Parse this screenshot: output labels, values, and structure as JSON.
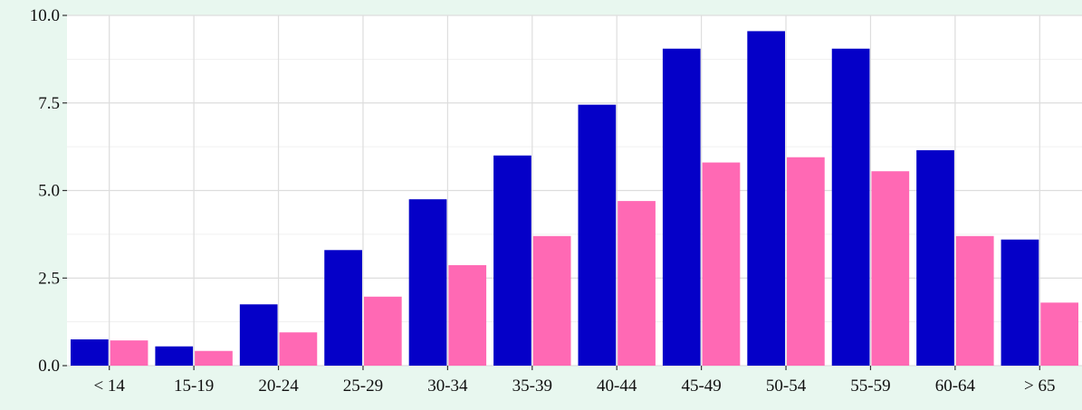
{
  "chart_data": {
    "type": "bar",
    "categories": [
      "< 14",
      "15-19",
      "20-24",
      "25-29",
      "30-34",
      "35-39",
      "40-44",
      "45-49",
      "50-54",
      "55-59",
      "60-64",
      "> 65"
    ],
    "series": [
      {
        "values": [
          0.75,
          0.55,
          1.75,
          3.3,
          4.75,
          6.0,
          7.45,
          9.05,
          9.55,
          9.05,
          6.15,
          3.6
        ]
      },
      {
        "values": [
          0.72,
          0.42,
          0.95,
          1.97,
          2.87,
          3.7,
          4.7,
          5.8,
          5.95,
          5.55,
          3.7,
          1.8
        ]
      }
    ],
    "title": "",
    "xlabel": "",
    "ylabel": "",
    "ylim": [
      0,
      10
    ],
    "yticks": [
      "0.0",
      "2.5",
      "5.0",
      "7.5",
      "10.0"
    ],
    "grid": true,
    "colors": {
      "series_1": "#0500c8",
      "series_2": "#ff69b4",
      "panel": "#ffffff",
      "background": "#e8f7ef",
      "grid": "#dddddd"
    }
  }
}
